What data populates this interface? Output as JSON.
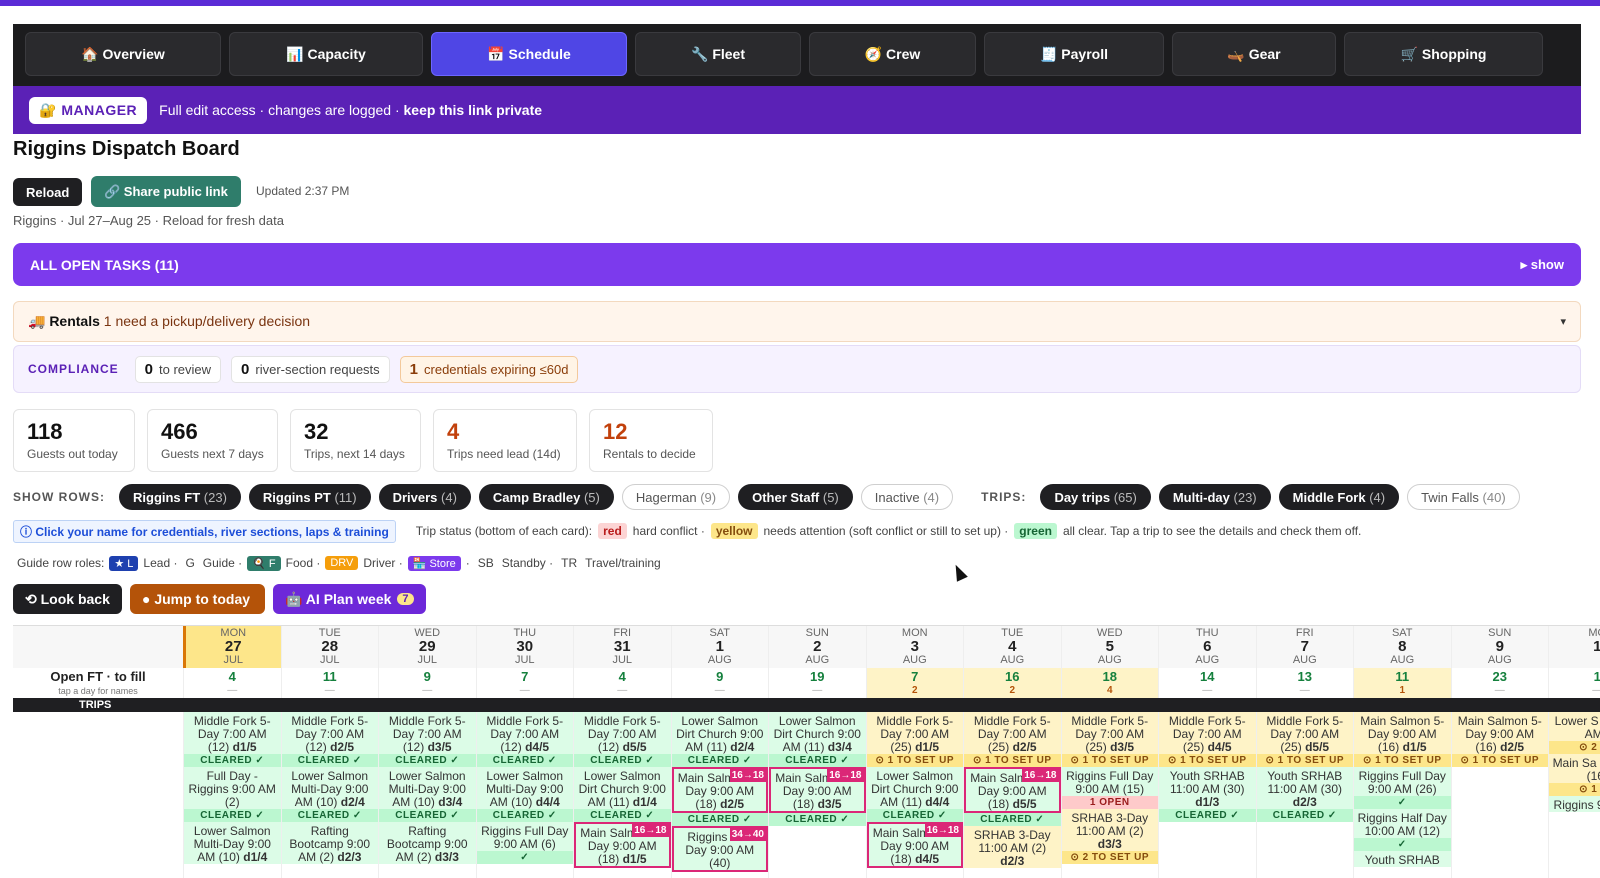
{
  "nav": {
    "tabs": [
      {
        "label": "🏠 Overview"
      },
      {
        "label": "📊 Capacity"
      },
      {
        "label": "📅 Schedule"
      },
      {
        "label": "🔧 Fleet"
      },
      {
        "label": "🧭 Crew"
      },
      {
        "label": "🧾 Payroll"
      },
      {
        "label": "🛶 Gear"
      },
      {
        "label": "🛒 Shopping"
      }
    ]
  },
  "manager": {
    "badge": "🔐 MANAGER",
    "text": "Full edit access · changes are logged · ",
    "bold": "keep this link private"
  },
  "page": {
    "title": "Riggins Dispatch Board",
    "reload": "Reload",
    "share": "🔗 Share public link",
    "updated": "Updated 2:37 PM",
    "subtitle": "Riggins · Jul 27–Aug 25 · Reload for fresh data"
  },
  "tasks": {
    "label": "ALL OPEN TASKS (11)",
    "toggle": "▸ show"
  },
  "rentals": {
    "label": "🚚 Rentals",
    "text": " 1 need a pickup/delivery decision",
    "chev": "▾"
  },
  "compliance": {
    "label": "COMPLIANCE",
    "items": [
      {
        "n": "0",
        "t": "to review"
      },
      {
        "n": "0",
        "t": "river-section requests"
      },
      {
        "n": "1",
        "t": "credentials expiring ≤60d"
      }
    ]
  },
  "stats": [
    {
      "n": "118",
      "l": "Guests out today"
    },
    {
      "n": "466",
      "l": "Guests next 7 days"
    },
    {
      "n": "32",
      "l": "Trips, next 14 days"
    },
    {
      "n": "4",
      "l": "Trips need lead (14d)"
    },
    {
      "n": "12",
      "l": "Rentals to decide"
    }
  ],
  "rows": {
    "label": "SHOW ROWS:",
    "pills": [
      {
        "name": "Riggins FT",
        "count": "(23)"
      },
      {
        "name": "Riggins PT",
        "count": "(11)"
      },
      {
        "name": "Drivers",
        "count": "(4)"
      },
      {
        "name": "Camp Bradley",
        "count": "(5)"
      },
      {
        "name": "Hagerman",
        "count": "(9)"
      },
      {
        "name": "Other Staff",
        "count": "(5)"
      },
      {
        "name": "Inactive",
        "count": "(4)"
      }
    ],
    "tripsLabel": "TRIPS:",
    "trips": [
      {
        "name": "Day trips",
        "count": "(65)"
      },
      {
        "name": "Multi-day",
        "count": "(23)"
      },
      {
        "name": "Middle Fork",
        "count": "(4)"
      },
      {
        "name": "Twin Falls",
        "count": "(40)"
      }
    ]
  },
  "legend": {
    "click": "ⓘ Click your name for credentials, river sections, laps & training",
    "status": "Trip status (bottom of each card):",
    "red": "red",
    "redT": "hard conflict ·",
    "yellow": "yellow",
    "yellowT": "needs attention (soft conflict or still to set up) ·",
    "green": "green",
    "greenT": "all clear. Tap a trip to see the details and check them off."
  },
  "roles": {
    "label": "Guide row roles:",
    "lead": "★ L",
    "leadT": "Lead ·",
    "g": "G",
    "gT": "Guide ·",
    "food": "🍳 F",
    "foodT": "Food ·",
    "drv": "DRV",
    "drvT": "Driver ·",
    "store": "🏪 Store",
    "storeT": "·",
    "sb": "SB",
    "sbT": "Standby ·",
    "tr": "TR",
    "trT": "Travel/training"
  },
  "actions": {
    "back": "⟲ Look back",
    "today": "● Jump to today",
    "ai": "🤖 AI Plan week",
    "aiCount": "7"
  },
  "grid": {
    "openLabel": "Open FT · to fill",
    "openSub": "tap a day for names",
    "tripsLabel": "TRIPS",
    "days": [
      {
        "dow": "MON",
        "d": "27",
        "m": "JUL",
        "open": "4",
        "sub": "—",
        "today": true
      },
      {
        "dow": "TUE",
        "d": "28",
        "m": "JUL",
        "open": "11",
        "sub": "—"
      },
      {
        "dow": "WED",
        "d": "29",
        "m": "JUL",
        "open": "9",
        "sub": "—"
      },
      {
        "dow": "THU",
        "d": "30",
        "m": "JUL",
        "open": "7",
        "sub": "—"
      },
      {
        "dow": "FRI",
        "d": "31",
        "m": "JUL",
        "open": "4",
        "sub": "—"
      },
      {
        "dow": "SAT",
        "d": "1",
        "m": "AUG",
        "open": "9",
        "sub": "—"
      },
      {
        "dow": "SUN",
        "d": "2",
        "m": "AUG",
        "open": "19",
        "sub": "—"
      },
      {
        "dow": "MON",
        "d": "3",
        "m": "AUG",
        "open": "7",
        "sub": "2",
        "hl": true
      },
      {
        "dow": "TUE",
        "d": "4",
        "m": "AUG",
        "open": "16",
        "sub": "2",
        "hl": true
      },
      {
        "dow": "WED",
        "d": "5",
        "m": "AUG",
        "open": "18",
        "sub": "4",
        "hl": true
      },
      {
        "dow": "THU",
        "d": "6",
        "m": "AUG",
        "open": "14",
        "sub": "—"
      },
      {
        "dow": "FRI",
        "d": "7",
        "m": "AUG",
        "open": "13",
        "sub": "—"
      },
      {
        "dow": "SAT",
        "d": "8",
        "m": "AUG",
        "open": "11",
        "sub": "1",
        "hl": true
      },
      {
        "dow": "SUN",
        "d": "9",
        "m": "AUG",
        "open": "23",
        "sub": "—"
      },
      {
        "dow": "MO",
        "d": "1",
        "m": "",
        "open": "1",
        "sub": "—"
      }
    ],
    "trips": [
      [
        {
          "t": "Middle Fork 5-Day 7:00 AM (12)",
          "c": "d1/5",
          "s": "CLEARED ✓"
        },
        {
          "t": "Full Day - Riggins 9:00 AM (2)",
          "c": "",
          "s": "CLEARED ✓"
        },
        {
          "t": "Lower Salmon Multi-Day 9:00 AM (10)",
          "c": "d1/4",
          "s": ""
        }
      ],
      [
        {
          "t": "Middle Fork 5-Day 7:00 AM (12)",
          "c": "d2/5",
          "s": "CLEARED ✓"
        },
        {
          "t": "Lower Salmon Multi-Day 9:00 AM (10)",
          "c": "d2/4",
          "s": "CLEARED ✓"
        },
        {
          "t": "Rafting Bootcamp 9:00 AM (2)",
          "c": "d2/3",
          "s": ""
        }
      ],
      [
        {
          "t": "Middle Fork 5-Day 7:00 AM (12)",
          "c": "d3/5",
          "s": "CLEARED ✓"
        },
        {
          "t": "Lower Salmon Multi-Day 9:00 AM (10)",
          "c": "d3/4",
          "s": "CLEARED ✓"
        },
        {
          "t": "Rafting Bootcamp 9:00 AM (2)",
          "c": "d3/3",
          "s": ""
        }
      ],
      [
        {
          "t": "Middle Fork 5-Day 7:00 AM (12)",
          "c": "d4/5",
          "s": "CLEARED ✓"
        },
        {
          "t": "Lower Salmon Multi-Day 9:00 AM (10)",
          "c": "d4/4",
          "s": "CLEARED ✓"
        },
        {
          "t": "Riggins Full Day 9:00 AM (6)",
          "c": "",
          "s": "✓"
        }
      ],
      [
        {
          "t": "Middle Fork 5-Day 7:00 AM (12)",
          "c": "d5/5",
          "s": "CLEARED ✓"
        },
        {
          "t": "Lower Salmon Dirt Church 9:00 AM (11)",
          "c": "d1/4",
          "s": "CLEARED ✓"
        },
        {
          "t": "Main Salmon 5-Day 9:00 AM (18)",
          "c": "d1/5",
          "s": "",
          "pink": "16→18"
        }
      ],
      [
        {
          "t": "Lower Salmon Dirt Church 9:00 AM (11)",
          "c": "d2/4",
          "s": "CLEARED ✓"
        },
        {
          "t": "Main Salmon 5-Day 9:00 AM (18)",
          "c": "d2/5",
          "s": "CLEARED ✓",
          "pink": "16→18"
        },
        {
          "t": "Riggins Half Day 9:00 AM (40)",
          "c": "",
          "s": "",
          "pink": "34→40"
        }
      ],
      [
        {
          "t": "Lower Salmon Dirt Church 9:00 AM (11)",
          "c": "d3/4",
          "s": "CLEARED ✓"
        },
        {
          "t": "Main Salmon 5-Day 9:00 AM (18)",
          "c": "d3/5",
          "s": "CLEARED ✓",
          "pink": "16→18"
        }
      ],
      [
        {
          "t": "Middle Fork 5-Day 7:00 AM (25)",
          "c": "d1/5",
          "s": "⊙ 1 TO SET UP",
          "y": true
        },
        {
          "t": "Lower Salmon Dirt Church 9:00 AM (11)",
          "c": "d4/4",
          "s": "CLEARED ✓"
        },
        {
          "t": "Main Salmon 5-Day 9:00 AM (18)",
          "c": "d4/5",
          "s": "",
          "pink": "16→18"
        }
      ],
      [
        {
          "t": "Middle Fork 5-Day 7:00 AM (25)",
          "c": "d2/5",
          "s": "⊙ 1 TO SET UP",
          "y": true
        },
        {
          "t": "Main Salmon 5-Day 9:00 AM (18)",
          "c": "d5/5",
          "s": "CLEARED ✓",
          "pink": "16→18"
        },
        {
          "t": "SRHAB 3-Day 11:00 AM (2)",
          "c": "d2/3",
          "s": "",
          "y": true
        }
      ],
      [
        {
          "t": "Middle Fork 5-Day 7:00 AM (25)",
          "c": "d3/5",
          "s": "⊙ 1 TO SET UP",
          "y": true
        },
        {
          "t": "Riggins Full Day 9:00 AM (15)",
          "c": "",
          "s": "1 OPEN",
          "red": true
        },
        {
          "t": "SRHAB 3-Day 11:00 AM (2)",
          "c": "d3/3",
          "s": "⊙ 2 TO SET UP",
          "y": true
        }
      ],
      [
        {
          "t": "Middle Fork 5-Day 7:00 AM (25)",
          "c": "d4/5",
          "s": "⊙ 1 TO SET UP",
          "y": true
        },
        {
          "t": "Youth SRHAB 11:00 AM (30)",
          "c": "d1/3",
          "s": "CLEARED ✓"
        }
      ],
      [
        {
          "t": "Middle Fork 5-Day 7:00 AM (25)",
          "c": "d5/5",
          "s": "⊙ 1 TO SET UP",
          "y": true
        },
        {
          "t": "Youth SRHAB 11:00 AM (30)",
          "c": "d2/3",
          "s": "CLEARED ✓"
        }
      ],
      [
        {
          "t": "Main Salmon 5-Day 9:00 AM (16)",
          "c": "d1/5",
          "s": "⊙ 1 TO SET UP",
          "y": true
        },
        {
          "t": "Riggins Full Day 9:00 AM (26)",
          "c": "",
          "s": "✓"
        },
        {
          "t": "Riggins Half Day 10:00 AM (12)",
          "c": "",
          "s": "✓"
        },
        {
          "t": "Youth SRHAB",
          "c": "",
          "s": ""
        }
      ],
      [
        {
          "t": "Main Salmon 5-Day 9:00 AM (16)",
          "c": "d2/5",
          "s": "⊙ 1 TO SET UP",
          "y": true
        }
      ],
      [
        {
          "t": "Lower S Multi-D AM (",
          "c": "",
          "s": "⊙ 2 TO",
          "y": true
        },
        {
          "t": "Main Sa 5-Day 9 (16)",
          "c": "",
          "s": "⊙ 1 TO",
          "y": true
        },
        {
          "t": "Riggins 9:00 AM",
          "c": "",
          "s": ""
        }
      ]
    ]
  }
}
